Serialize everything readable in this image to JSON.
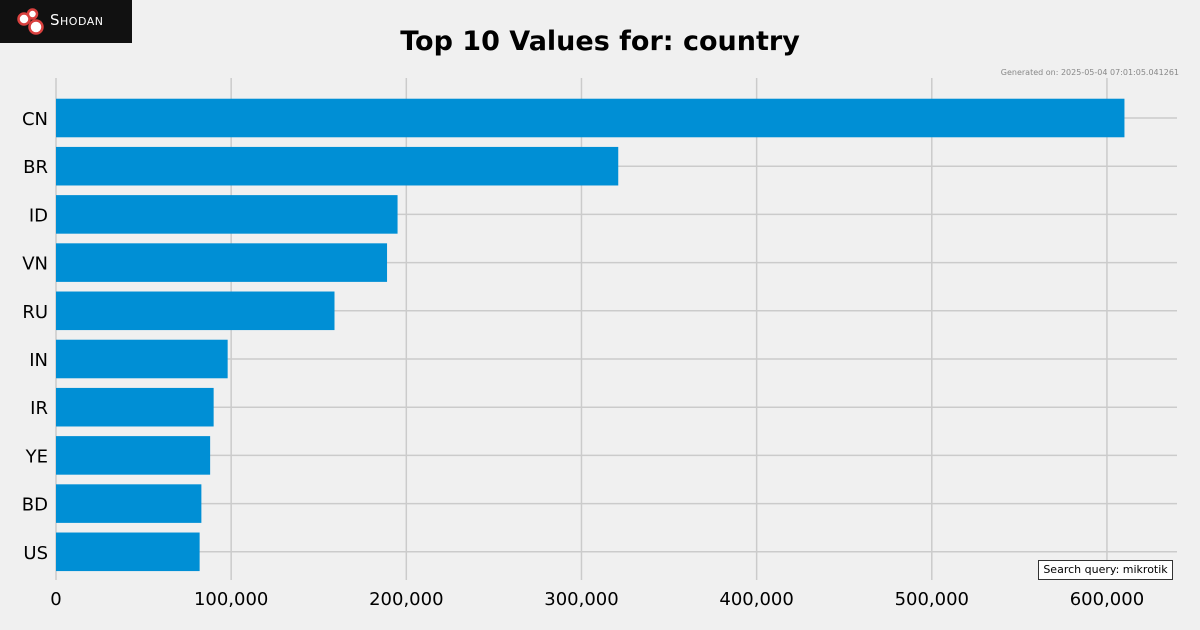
{
  "logo": {
    "text": "Shodan"
  },
  "generated": "Generated on: 2025-05-04 07:01:05.041261",
  "query": "Search query: mikrotik",
  "colors": {
    "bar": "#008fd5",
    "grid": "#cbcbcb",
    "background": "#f0f0f0"
  },
  "chart_data": {
    "type": "bar",
    "orientation": "horizontal",
    "title": "Top 10 Values for: country",
    "xlabel": "",
    "ylabel": "",
    "categories": [
      "CN",
      "BR",
      "ID",
      "VN",
      "RU",
      "IN",
      "IR",
      "YE",
      "BD",
      "US"
    ],
    "values": [
      610000,
      321000,
      195000,
      189000,
      159000,
      98000,
      90000,
      88000,
      83000,
      82000
    ],
    "xlim": [
      0,
      640000
    ],
    "xticks": [
      0,
      100000,
      200000,
      300000,
      400000,
      500000,
      600000
    ],
    "xtick_labels": [
      "0",
      "100,000",
      "200,000",
      "300,000",
      "400,000",
      "500,000",
      "600,000"
    ],
    "grid": true,
    "legend": "none"
  }
}
